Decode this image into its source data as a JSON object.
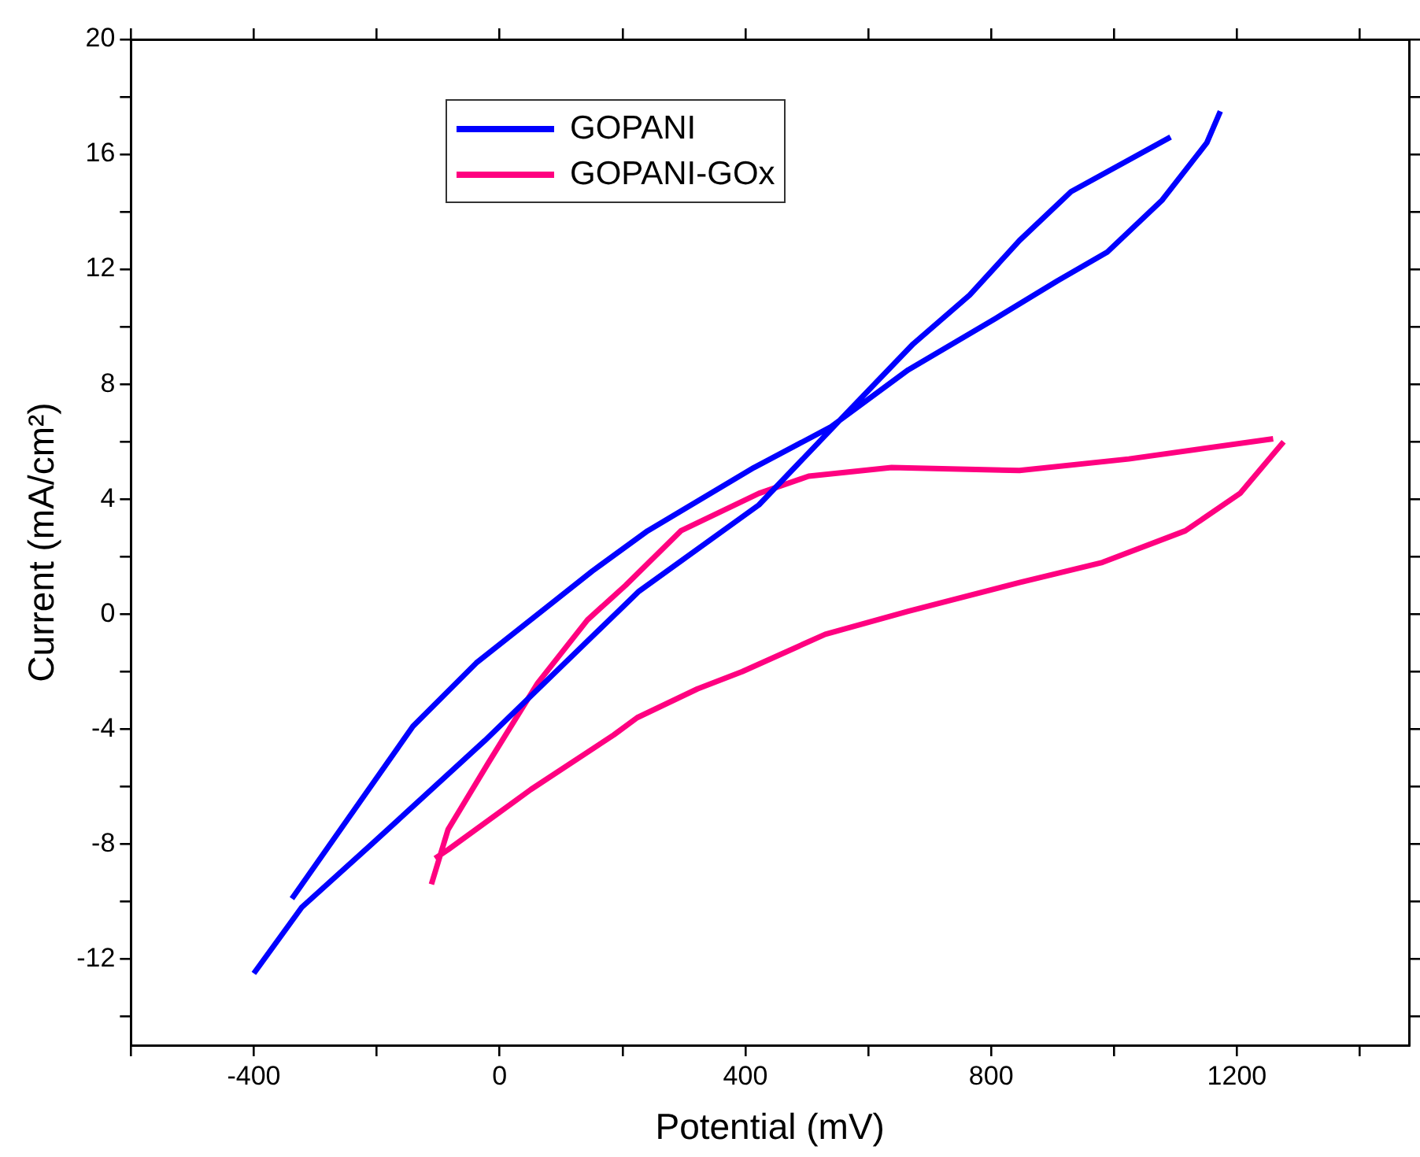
{
  "chart_data": {
    "type": "line",
    "xlabel": "Potential (mV)",
    "ylabel": "Current (mA/cm²)",
    "xlim": [
      -600,
      1480
    ],
    "ylim": [
      -15,
      20
    ],
    "xticks": [
      {
        "value": -600,
        "label": null
      },
      -400,
      {
        "value": -200,
        "label": null
      },
      0,
      {
        "value": 200,
        "label": null
      },
      400,
      {
        "value": 600,
        "label": null
      },
      800,
      {
        "value": 1000,
        "label": null
      },
      1200,
      {
        "value": 1400,
        "label": null
      }
    ],
    "yticks": [
      {
        "value": -14,
        "label": null
      },
      -12,
      {
        "value": -10,
        "label": null
      },
      -8,
      {
        "value": -6,
        "label": null
      },
      -4,
      {
        "value": -2,
        "label": null
      },
      0,
      {
        "value": 2,
        "label": null
      },
      4,
      {
        "value": 6,
        "label": null
      },
      8,
      {
        "value": 10,
        "label": null
      },
      12,
      {
        "value": 14,
        "label": null
      },
      16,
      {
        "value": 18,
        "label": null
      },
      20
    ],
    "grid": false,
    "legend": "top left",
    "marker": "none",
    "line_style": "solid",
    "series": [
      {
        "name": "GOPANI",
        "color": "#0000ff",
        "x": [
          -338,
          -141,
          -38,
          151,
          241,
          414,
          538,
          665,
          808,
          908,
          989,
          1078,
          1151,
          1173,
          null,
          1092,
          930,
          846,
          765,
          673,
          565,
          422,
          227,
          -24,
          -208,
          -322,
          -400
        ],
        "values": [
          -9.9,
          -3.9,
          -1.7,
          1.5,
          2.9,
          5.1,
          6.5,
          8.5,
          10.3,
          11.6,
          12.6,
          14.4,
          16.4,
          17.5,
          null,
          16.6,
          14.7,
          13.0,
          11.1,
          9.4,
          7.0,
          3.8,
          0.8,
          -4.4,
          -8.0,
          -10.2,
          -12.5
        ]
      },
      {
        "name": "GOPANI-GOx",
        "color": "#ff0080",
        "x": [
          -111,
          -84,
          -19,
          62,
          143,
          205,
          295,
          422,
          503,
          638,
          846,
          1024,
          1259,
          null,
          1276,
          1205,
          1116,
          981,
          846,
          665,
          530,
          395,
          322,
          224,
          186,
          51,
          -84,
          -105
        ],
        "values": [
          -9.4,
          -7.5,
          -5.2,
          -2.4,
          -0.2,
          1.0,
          2.9,
          4.2,
          4.8,
          5.1,
          5.0,
          5.4,
          6.1,
          null,
          6.0,
          4.2,
          2.9,
          1.8,
          1.1,
          0.1,
          -0.7,
          -2.0,
          -2.6,
          -3.6,
          -4.2,
          -6.1,
          -8.2,
          -8.5
        ]
      }
    ]
  }
}
